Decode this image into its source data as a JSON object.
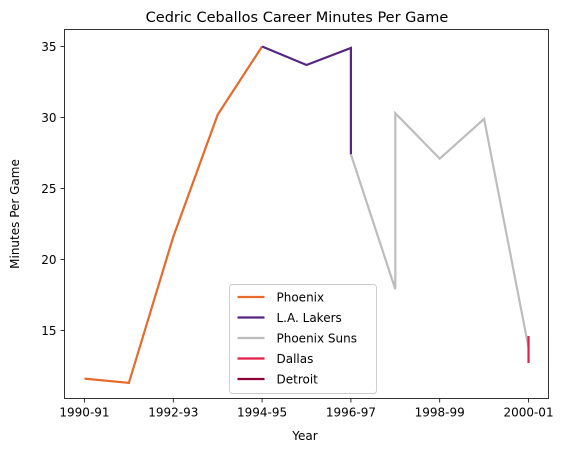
{
  "chart_data": {
    "type": "line",
    "title": "Cedric Ceballos Career Minutes Per Game",
    "xlabel": "Year",
    "ylabel": "Minutes Per Game",
    "xlim": [
      -0.45,
      10.45
    ],
    "ylim": [
      10.2,
      36.2
    ],
    "grid": false,
    "legend_position": "bottom-center",
    "x_tick_labels": [
      "1990-91",
      "1992-93",
      "1994-95",
      "1996-97",
      "1998-99",
      "2000-01"
    ],
    "x_tick_positions": [
      0,
      2,
      4,
      6,
      8,
      10
    ],
    "y_ticks": [
      15,
      20,
      25,
      30,
      35
    ],
    "series": [
      {
        "name": "Phoenix",
        "color": "#e8692c",
        "points": [
          [
            0,
            11.6
          ],
          [
            1,
            11.3
          ],
          [
            2,
            21.6
          ],
          [
            3,
            30.2
          ],
          [
            4,
            35.0
          ]
        ]
      },
      {
        "name": "L.A. Lakers",
        "color": "#552583",
        "points": [
          [
            4,
            35.0
          ],
          [
            5,
            33.7
          ],
          [
            6,
            34.9
          ],
          [
            6,
            27.4
          ]
        ]
      },
      {
        "name": "Phoenix Suns",
        "color": "#bdbdbd",
        "points": [
          [
            6,
            27.4
          ],
          [
            7,
            17.9
          ],
          [
            7,
            30.3
          ],
          [
            8,
            27.1
          ],
          [
            9,
            29.9
          ],
          [
            10,
            13.8
          ]
        ]
      },
      {
        "name": "Dallas",
        "color": "#e21d48",
        "points": [
          [
            10,
            14.6
          ],
          [
            10,
            12.7
          ]
        ]
      },
      {
        "name": "Detroit",
        "color": "#8b0037",
        "points": []
      }
    ]
  }
}
